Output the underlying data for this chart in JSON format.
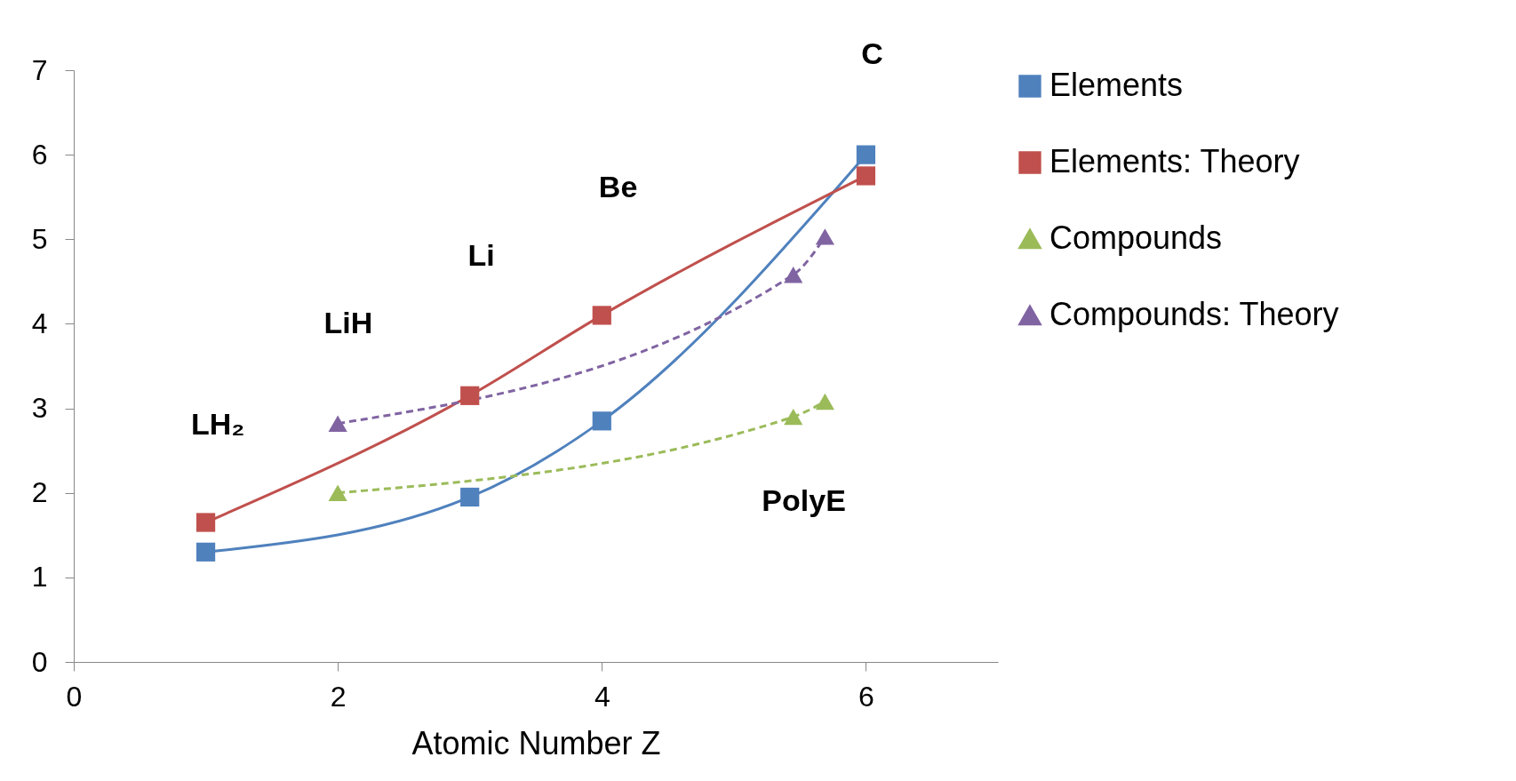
{
  "chart_data": {
    "type": "line",
    "xlabel": "Atomic Number Z",
    "xlim": [
      0,
      7
    ],
    "xticks": [
      0,
      2,
      4,
      6
    ],
    "ylim": [
      0,
      7
    ],
    "yticks": [
      0,
      1,
      2,
      3,
      4,
      5,
      6,
      7
    ],
    "grid": false,
    "legend": "right",
    "series": [
      {
        "name": "Elements",
        "color": "#4f81bd",
        "marker": "square",
        "line_style": "solid",
        "x": [
          1,
          3,
          4,
          6
        ],
        "values": [
          1.3,
          1.95,
          2.85,
          6.0
        ]
      },
      {
        "name": "Elements: Theory",
        "color": "#c0504d",
        "marker": "square",
        "line_style": "solid",
        "x": [
          1,
          3,
          4,
          6
        ],
        "values": [
          1.65,
          3.15,
          4.1,
          5.75
        ]
      },
      {
        "name": "Compounds",
        "color": "#9bbb59",
        "marker": "triangle",
        "line_style": "dashed",
        "x": [
          2,
          5.45,
          5.69
        ],
        "values": [
          2.0,
          2.9,
          3.08
        ]
      },
      {
        "name": "Compounds: Theory",
        "color": "#8064a2",
        "marker": "triangle",
        "line_style": "dashed",
        "x": [
          2,
          5.45,
          5.69
        ],
        "values": [
          2.82,
          4.58,
          5.03
        ]
      }
    ],
    "annotations": [
      "LH₂",
      "LiH",
      "Li",
      "Be",
      "C",
      "PolyE"
    ]
  }
}
